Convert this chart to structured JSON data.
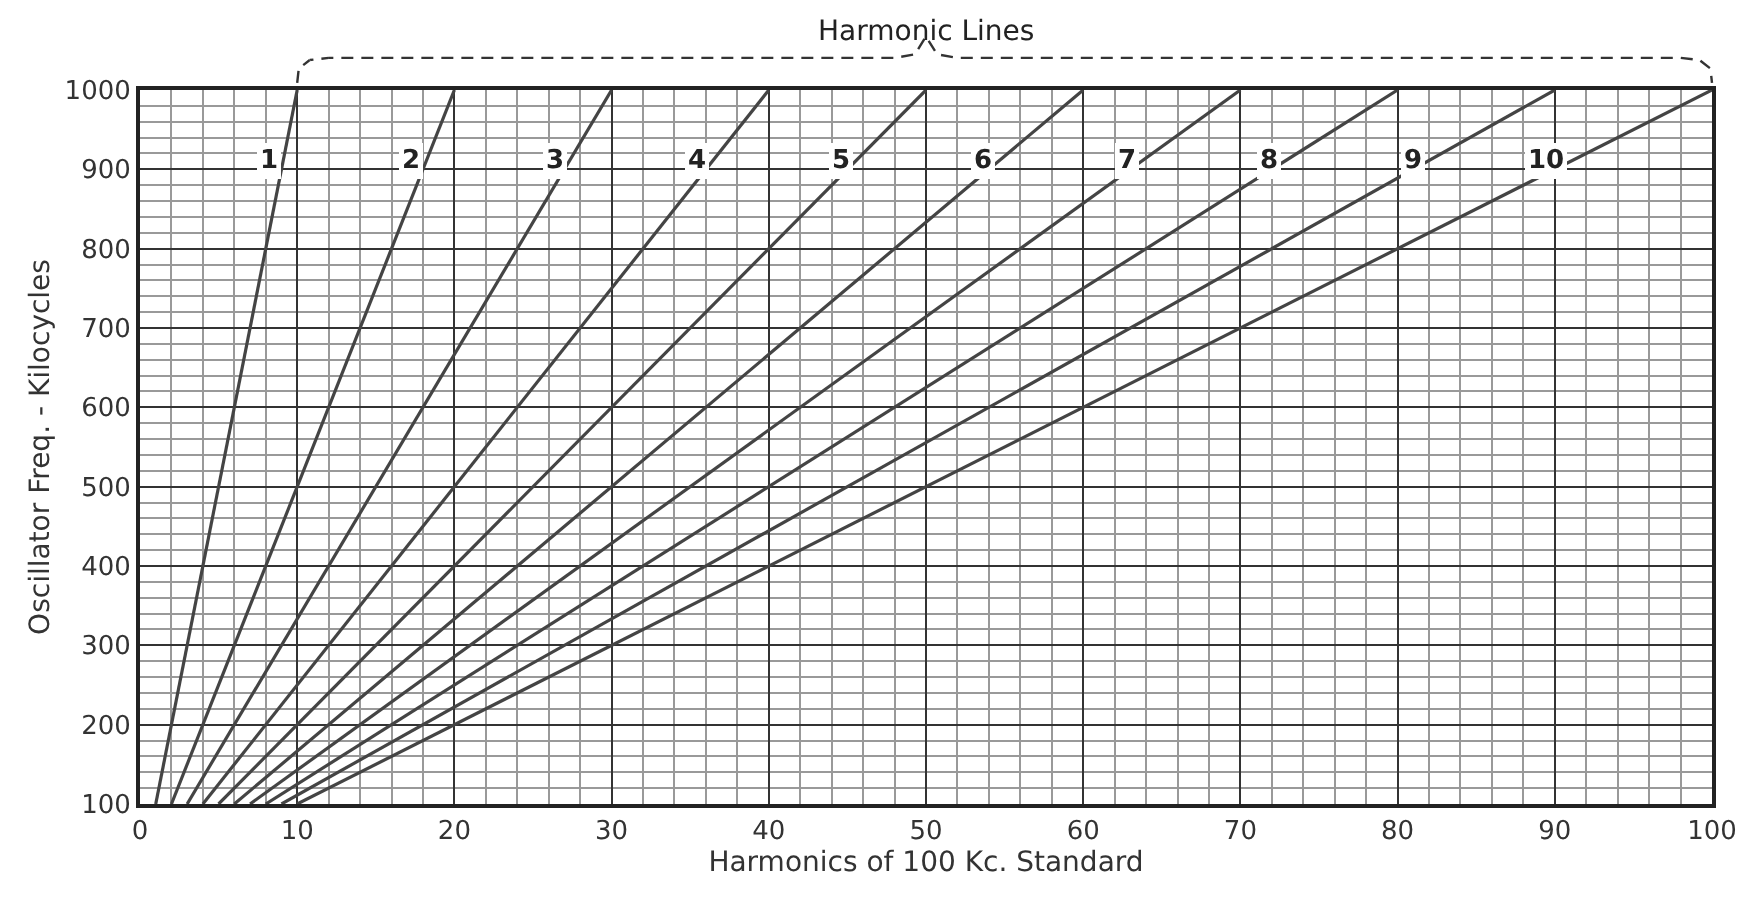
{
  "chart_data": {
    "type": "line",
    "xlabel": "Harmonics of 100 Kc. Standard",
    "ylabel": "Oscillator Freq. - Kilocycles",
    "annotations": [
      "Harmonic Lines"
    ],
    "xlim": [
      0,
      100
    ],
    "xticks": [
      0,
      10,
      20,
      30,
      40,
      50,
      60,
      70,
      80,
      90,
      100
    ],
    "ylim": [
      100,
      1000
    ],
    "yticks": [
      100,
      200,
      300,
      400,
      500,
      600,
      700,
      800,
      900,
      1000
    ],
    "grid": true,
    "legend": false,
    "marker": "none",
    "line_style": "solid",
    "series": [
      {
        "name": "1",
        "color": "#444444",
        "x": [
          1,
          10
        ],
        "values": [
          100,
          1000
        ]
      },
      {
        "name": "2",
        "color": "#444444",
        "x": [
          2,
          20
        ],
        "values": [
          100,
          1000
        ]
      },
      {
        "name": "3",
        "color": "#444444",
        "x": [
          3,
          30
        ],
        "values": [
          100,
          1000
        ]
      },
      {
        "name": "4",
        "color": "#444444",
        "x": [
          4,
          40
        ],
        "values": [
          100,
          1000
        ]
      },
      {
        "name": "5",
        "color": "#444444",
        "x": [
          5,
          50
        ],
        "values": [
          100,
          1000
        ]
      },
      {
        "name": "6",
        "color": "#444444",
        "x": [
          6,
          60
        ],
        "values": [
          100,
          1000
        ]
      },
      {
        "name": "7",
        "color": "#444444",
        "x": [
          7,
          70
        ],
        "values": [
          100,
          1000
        ]
      },
      {
        "name": "8",
        "color": "#444444",
        "x": [
          8,
          80
        ],
        "values": [
          100,
          1000
        ]
      },
      {
        "name": "9",
        "color": "#444444",
        "x": [
          9,
          90
        ],
        "values": [
          100,
          1000
        ]
      },
      {
        "name": "10",
        "color": "#444444",
        "x": [
          10,
          100
        ],
        "values": [
          100,
          1000
        ]
      }
    ]
  }
}
